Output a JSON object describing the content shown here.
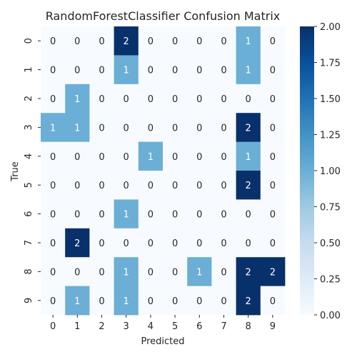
{
  "chart_data": {
    "type": "heatmap",
    "title": "RandomForestClassifier Confusion Matrix",
    "xlabel": "Predicted",
    "ylabel": "True",
    "x_categories": [
      "0",
      "1",
      "2",
      "3",
      "4",
      "5",
      "6",
      "7",
      "8",
      "9"
    ],
    "y_categories": [
      "0",
      "1",
      "2",
      "3",
      "4",
      "5",
      "6",
      "7",
      "8",
      "9"
    ],
    "values": [
      [
        0,
        0,
        0,
        2,
        0,
        0,
        0,
        0,
        1,
        0
      ],
      [
        0,
        0,
        0,
        1,
        0,
        0,
        0,
        0,
        1,
        0
      ],
      [
        0,
        1,
        0,
        0,
        0,
        0,
        0,
        0,
        0,
        0
      ],
      [
        1,
        1,
        0,
        0,
        0,
        0,
        0,
        0,
        2,
        0
      ],
      [
        0,
        0,
        0,
        0,
        1,
        0,
        0,
        0,
        1,
        0
      ],
      [
        0,
        0,
        0,
        0,
        0,
        0,
        0,
        0,
        2,
        0
      ],
      [
        0,
        0,
        0,
        1,
        0,
        0,
        0,
        0,
        0,
        0
      ],
      [
        0,
        2,
        0,
        0,
        0,
        0,
        0,
        0,
        0,
        0
      ],
      [
        0,
        0,
        0,
        1,
        0,
        0,
        1,
        0,
        2,
        2
      ],
      [
        0,
        1,
        0,
        1,
        0,
        0,
        0,
        0,
        2,
        0
      ]
    ],
    "colormap": "Blues",
    "colors": {
      "low": "#f7fbff",
      "mid": "#6baed6",
      "high": "#08306b"
    },
    "vmin": 0,
    "vmax": 2,
    "colorbar_ticks": [
      "0.00",
      "0.25",
      "0.50",
      "0.75",
      "1.00",
      "1.25",
      "1.50",
      "1.75",
      "2.00"
    ]
  }
}
